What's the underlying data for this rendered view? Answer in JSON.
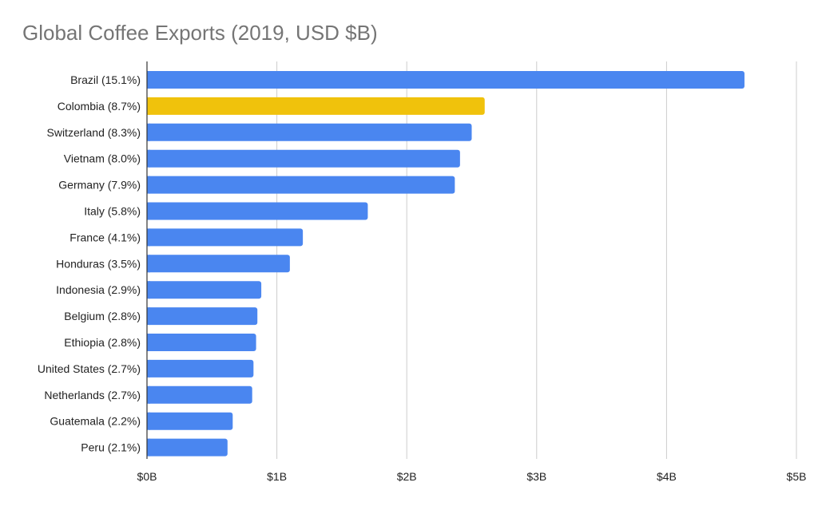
{
  "chart_data": {
    "type": "bar",
    "orientation": "horizontal",
    "title": "Global Coffee Exports (2019, USD $B)",
    "xlabel": "",
    "ylabel": "",
    "categories": [
      "Brazil (15.1%)",
      "Colombia (8.7%)",
      "Switzerland (8.3%)",
      "Vietnam (8.0%)",
      "Germany (7.9%)",
      "Italy (5.8%)",
      "France (4.1%)",
      "Honduras (3.5%)",
      "Indonesia (2.9%)",
      "Belgium (2.8%)",
      "Ethiopia (2.8%)",
      "United States (2.7%)",
      "Netherlands (2.7%)",
      "Guatemala (2.2%)",
      "Peru (2.1%)"
    ],
    "values": [
      4.6,
      2.6,
      2.5,
      2.41,
      2.37,
      1.7,
      1.2,
      1.1,
      0.88,
      0.85,
      0.84,
      0.82,
      0.81,
      0.66,
      0.62
    ],
    "xlim": [
      0,
      5
    ],
    "xticks": [
      0,
      1,
      2,
      3,
      4,
      5
    ],
    "xtick_labels": [
      "$0B",
      "$1B",
      "$2B",
      "$3B",
      "$4B",
      "$5B"
    ],
    "grid": true,
    "bar_color": "#4a86f0",
    "highlight_color": "#f0c20c",
    "highlight_index": 1
  }
}
